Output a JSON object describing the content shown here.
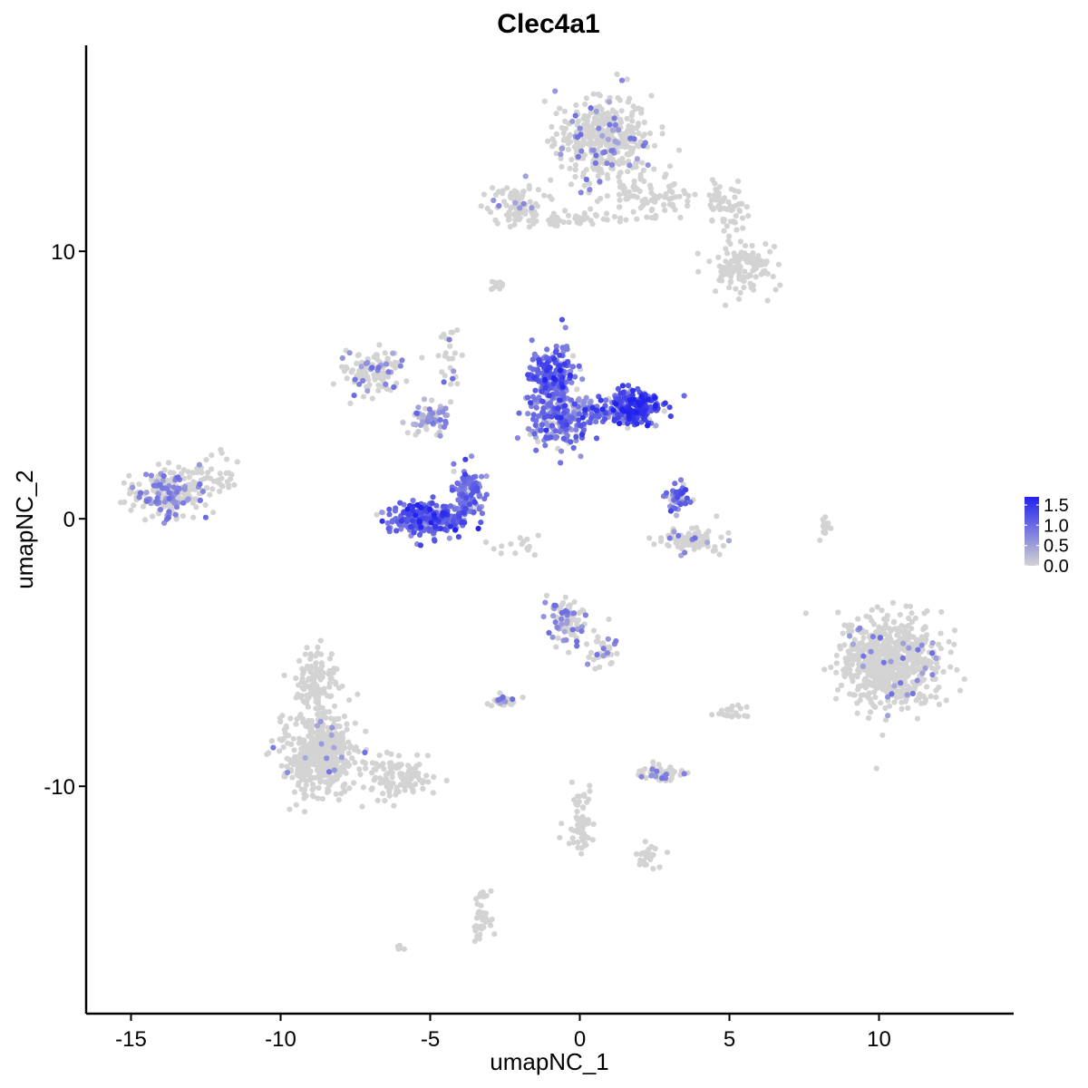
{
  "chart_data": {
    "type": "scatter",
    "title": "Clec4a1",
    "xlabel": "umapNC_1",
    "ylabel": "umapNC_2",
    "xlim": [
      -16.5,
      14.5
    ],
    "ylim": [
      -18.5,
      17.7
    ],
    "x_ticks": [
      {
        "value": -15,
        "label": "-15"
      },
      {
        "value": -10,
        "label": "-10"
      },
      {
        "value": -5,
        "label": "-5"
      },
      {
        "value": 0,
        "label": "0"
      },
      {
        "value": 5,
        "label": "5"
      },
      {
        "value": 10,
        "label": "10"
      }
    ],
    "y_ticks": [
      {
        "value": -10,
        "label": "-10"
      },
      {
        "value": 0,
        "label": "0"
      },
      {
        "value": 10,
        "label": "10"
      }
    ],
    "color_scale": {
      "low_color": "#d3d3d3",
      "high_color": "#2222ee",
      "min": 0,
      "max": 1.7,
      "ticks": [
        {
          "value": 1.5,
          "label": "1.5"
        },
        {
          "value": 1.0,
          "label": "1.0"
        },
        {
          "value": 0.5,
          "label": "0.5"
        },
        {
          "value": 0.0,
          "label": "0.0"
        }
      ]
    },
    "legend_position": "right",
    "grid": false,
    "clusters": [
      {
        "center": [
          0.8,
          14.1
        ],
        "spread": [
          1.1,
          1.2
        ],
        "count": 380,
        "expression": 0.03
      },
      {
        "center": [
          2.2,
          12.0
        ],
        "spread": [
          1.6,
          0.6
        ],
        "count": 90,
        "expression": 0.0
      },
      {
        "center": [
          4.9,
          11.6
        ],
        "spread": [
          0.5,
          0.6
        ],
        "count": 60,
        "expression": 0.0
      },
      {
        "center": [
          5.5,
          9.4
        ],
        "spread": [
          0.8,
          0.6
        ],
        "count": 130,
        "expression": 0.0
      },
      {
        "center": [
          -2.1,
          11.7
        ],
        "spread": [
          0.7,
          0.5
        ],
        "count": 90,
        "expression": 0.02
      },
      {
        "center": [
          0.0,
          11.2
        ],
        "spread": [
          1.2,
          0.2
        ],
        "count": 40,
        "expression": 0.0
      },
      {
        "center": [
          -7.0,
          5.5
        ],
        "spread": [
          0.7,
          0.6
        ],
        "count": 110,
        "expression": 0.05
      },
      {
        "center": [
          -5.0,
          3.7
        ],
        "spread": [
          0.5,
          0.4
        ],
        "count": 70,
        "expression": 0.35
      },
      {
        "center": [
          -4.3,
          6.0
        ],
        "spread": [
          0.3,
          1.0
        ],
        "count": 25,
        "expression": 0.02
      },
      {
        "center": [
          -5.1,
          0.0
        ],
        "spread": [
          0.9,
          0.45
        ],
        "count": 300,
        "expression": 1.05
      },
      {
        "center": [
          -3.7,
          1.0
        ],
        "spread": [
          0.35,
          0.7
        ],
        "count": 90,
        "expression": 0.9
      },
      {
        "center": [
          -0.9,
          5.3
        ],
        "spread": [
          0.5,
          0.8
        ],
        "count": 220,
        "expression": 1.0
      },
      {
        "center": [
          -0.7,
          3.6
        ],
        "spread": [
          0.8,
          0.7
        ],
        "count": 160,
        "expression": 0.85
      },
      {
        "center": [
          1.9,
          4.2
        ],
        "spread": [
          0.6,
          0.45
        ],
        "count": 230,
        "expression": 1.25
      },
      {
        "center": [
          0.5,
          4.1
        ],
        "spread": [
          0.7,
          0.4
        ],
        "count": 90,
        "expression": 0.95
      },
      {
        "center": [
          3.3,
          0.8
        ],
        "spread": [
          0.25,
          0.4
        ],
        "count": 45,
        "expression": 0.9
      },
      {
        "center": [
          3.7,
          -0.8
        ],
        "spread": [
          0.65,
          0.3
        ],
        "count": 90,
        "expression": 0.02
      },
      {
        "center": [
          -13.8,
          1.0
        ],
        "spread": [
          0.8,
          0.6
        ],
        "count": 230,
        "expression": 0.08
      },
      {
        "center": [
          -12.2,
          1.6
        ],
        "spread": [
          0.6,
          0.5
        ],
        "count": 40,
        "expression": 0.0
      },
      {
        "center": [
          10.4,
          -5.3
        ],
        "spread": [
          1.2,
          1.2
        ],
        "count": 650,
        "expression": 0.01
      },
      {
        "center": [
          -8.7,
          -8.8
        ],
        "spread": [
          0.9,
          1.1
        ],
        "count": 450,
        "expression": 0.01
      },
      {
        "center": [
          -8.8,
          -6.0
        ],
        "spread": [
          0.5,
          0.8
        ],
        "count": 110,
        "expression": 0.0
      },
      {
        "center": [
          -6.0,
          -9.7
        ],
        "spread": [
          0.9,
          0.5
        ],
        "count": 110,
        "expression": 0.0
      },
      {
        "center": [
          -0.4,
          -3.8
        ],
        "spread": [
          0.5,
          0.6
        ],
        "count": 90,
        "expression": 0.06
      },
      {
        "center": [
          0.8,
          -4.9
        ],
        "spread": [
          0.3,
          0.6
        ],
        "count": 35,
        "expression": 0.05
      },
      {
        "center": [
          -2.6,
          -6.8
        ],
        "spread": [
          0.3,
          0.15
        ],
        "count": 35,
        "expression": 0.06
      },
      {
        "center": [
          2.7,
          -9.5
        ],
        "spread": [
          0.5,
          0.2
        ],
        "count": 60,
        "expression": 0.06
      },
      {
        "center": [
          0.0,
          -11.2
        ],
        "spread": [
          0.35,
          0.9
        ],
        "count": 60,
        "expression": 0.0
      },
      {
        "center": [
          2.3,
          -12.6
        ],
        "spread": [
          0.3,
          0.3
        ],
        "count": 25,
        "expression": 0.0
      },
      {
        "center": [
          -3.3,
          -14.8
        ],
        "spread": [
          0.2,
          0.6
        ],
        "count": 40,
        "expression": 0.0
      },
      {
        "center": [
          5.1,
          -7.3
        ],
        "spread": [
          0.35,
          0.2
        ],
        "count": 20,
        "expression": 0.0
      },
      {
        "center": [
          8.2,
          -0.2
        ],
        "spread": [
          0.12,
          0.5
        ],
        "count": 15,
        "expression": 0.0
      },
      {
        "center": [
          -2.7,
          8.7
        ],
        "spread": [
          0.2,
          0.12
        ],
        "count": 10,
        "expression": 0.0
      },
      {
        "center": [
          -2.0,
          -1.0
        ],
        "spread": [
          0.7,
          0.3
        ],
        "count": 15,
        "expression": 0.05
      },
      {
        "center": [
          -6.0,
          -16.1
        ],
        "spread": [
          0.15,
          0.1
        ],
        "count": 6,
        "expression": 0.0
      }
    ]
  }
}
